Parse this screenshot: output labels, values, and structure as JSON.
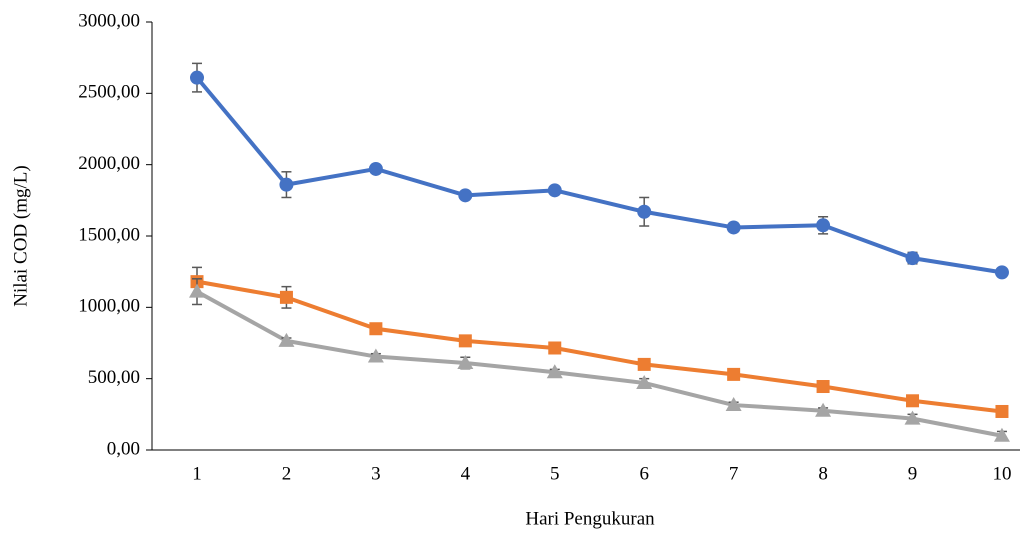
{
  "chart_data": {
    "type": "line",
    "x_label": "Hari Pengukuran",
    "y_label": "Nilai COD (mg/L)",
    "categories": [
      "1",
      "2",
      "3",
      "4",
      "5",
      "6",
      "7",
      "8",
      "9",
      "10"
    ],
    "ylim": [
      0,
      3000
    ],
    "yticks": [
      {
        "value": 0,
        "label": "0,00"
      },
      {
        "value": 500,
        "label": "500,00"
      },
      {
        "value": 1000,
        "label": "1000,00"
      },
      {
        "value": 1500,
        "label": "1500,00"
      },
      {
        "value": 2000,
        "label": "2000,00"
      },
      {
        "value": 2500,
        "label": "2500,00"
      },
      {
        "value": 3000,
        "label": "3000,00"
      }
    ],
    "grid": false,
    "series": [
      {
        "color": "#4472c4",
        "marker": "circle",
        "values": [
          2610,
          1860,
          1970,
          1785,
          1820,
          1670,
          1560,
          1575,
          1345,
          1245
        ],
        "errors": [
          100,
          90,
          15,
          15,
          15,
          100,
          30,
          60,
          40,
          15
        ]
      },
      {
        "color": "#ed7d31",
        "marker": "square",
        "values": [
          1180,
          1070,
          850,
          765,
          715,
          600,
          530,
          445,
          345,
          270
        ],
        "errors": [
          100,
          75,
          20,
          20,
          20,
          20,
          20,
          20,
          20,
          20
        ]
      },
      {
        "color": "#a5a5a5",
        "marker": "triangle",
        "values": [
          1110,
          765,
          655,
          610,
          545,
          470,
          315,
          275,
          220,
          100
        ],
        "errors": [
          90,
          20,
          20,
          40,
          20,
          30,
          20,
          20,
          30,
          30
        ]
      }
    ]
  }
}
